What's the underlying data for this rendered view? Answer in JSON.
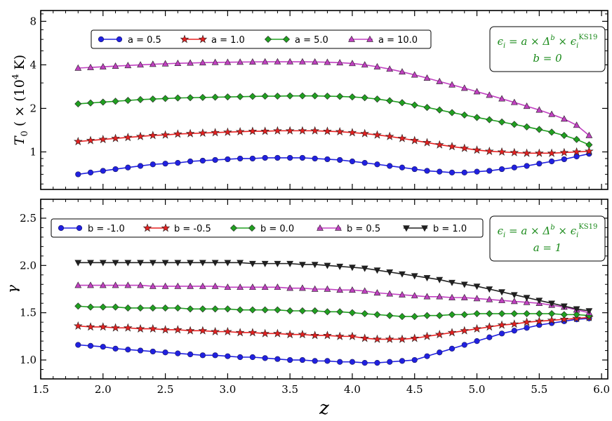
{
  "chart_data": [
    {
      "type": "line",
      "ylabel": "T_0 (×(10^4 K)",
      "ylabel_parts": [
        "T",
        "0",
        " ( × (10",
        "4",
        " K)"
      ],
      "y_scale": "log",
      "ylim": [
        0.55,
        9.5
      ],
      "xlim": [
        1.5,
        6.05
      ],
      "yticks": [
        1,
        2,
        4,
        8
      ],
      "yticklabels": [
        "1",
        "2",
        "4",
        "8"
      ],
      "legend_location": "top-left",
      "annotation": {
        "line1": "ϵi = a × Δb × ϵiKS19",
        "line1_parts": [
          "ϵ",
          "i",
          " = a × Δ",
          "b",
          " × ϵ",
          "i",
          "KS19"
        ],
        "line2": "b = 0"
      },
      "x": [
        1.8,
        1.9,
        2.0,
        2.1,
        2.2,
        2.3,
        2.4,
        2.5,
        2.6,
        2.7,
        2.8,
        2.9,
        3.0,
        3.1,
        3.2,
        3.3,
        3.4,
        3.5,
        3.6,
        3.7,
        3.8,
        3.9,
        4.0,
        4.1,
        4.2,
        4.3,
        4.4,
        4.5,
        4.6,
        4.7,
        4.8,
        4.9,
        5.0,
        5.1,
        5.2,
        5.3,
        5.4,
        5.5,
        5.6,
        5.7,
        5.8,
        5.9
      ],
      "series": [
        {
          "name": "a = 0.5",
          "color": "#2020e0",
          "marker": "circle",
          "values": [
            0.7,
            0.72,
            0.74,
            0.76,
            0.78,
            0.8,
            0.82,
            0.83,
            0.84,
            0.86,
            0.87,
            0.88,
            0.89,
            0.9,
            0.9,
            0.91,
            0.91,
            0.91,
            0.91,
            0.9,
            0.89,
            0.88,
            0.86,
            0.84,
            0.82,
            0.8,
            0.78,
            0.76,
            0.74,
            0.73,
            0.72,
            0.72,
            0.73,
            0.74,
            0.76,
            0.78,
            0.8,
            0.83,
            0.86,
            0.89,
            0.93,
            0.97
          ]
        },
        {
          "name": "a = 1.0",
          "color": "#e52020",
          "marker": "star",
          "values": [
            1.18,
            1.2,
            1.22,
            1.24,
            1.26,
            1.28,
            1.3,
            1.31,
            1.33,
            1.34,
            1.35,
            1.36,
            1.37,
            1.38,
            1.39,
            1.39,
            1.4,
            1.4,
            1.4,
            1.4,
            1.39,
            1.38,
            1.36,
            1.34,
            1.31,
            1.28,
            1.24,
            1.2,
            1.16,
            1.12,
            1.09,
            1.06,
            1.03,
            1.01,
            1.0,
            0.99,
            0.98,
            0.98,
            0.98,
            0.99,
            1.0,
            1.01
          ]
        },
        {
          "name": "a = 5.0",
          "color": "#20a020",
          "marker": "diamond",
          "values": [
            2.15,
            2.18,
            2.21,
            2.24,
            2.27,
            2.3,
            2.32,
            2.34,
            2.36,
            2.37,
            2.38,
            2.39,
            2.4,
            2.41,
            2.42,
            2.43,
            2.43,
            2.44,
            2.44,
            2.44,
            2.43,
            2.42,
            2.4,
            2.37,
            2.32,
            2.26,
            2.19,
            2.11,
            2.03,
            1.95,
            1.87,
            1.8,
            1.73,
            1.67,
            1.61,
            1.55,
            1.49,
            1.43,
            1.37,
            1.3,
            1.22,
            1.12
          ]
        },
        {
          "name": "a = 10.0",
          "color": "#c040c0",
          "marker": "triangle",
          "values": [
            3.8,
            3.84,
            3.88,
            3.92,
            3.96,
            4.0,
            4.04,
            4.07,
            4.1,
            4.12,
            4.14,
            4.16,
            4.17,
            4.18,
            4.19,
            4.2,
            4.2,
            4.2,
            4.2,
            4.19,
            4.17,
            4.14,
            4.09,
            4.0,
            3.88,
            3.74,
            3.58,
            3.41,
            3.24,
            3.07,
            2.91,
            2.76,
            2.61,
            2.47,
            2.33,
            2.2,
            2.07,
            1.95,
            1.82,
            1.69,
            1.53,
            1.3
          ]
        }
      ]
    },
    {
      "type": "line",
      "xlabel": "z",
      "ylabel": "γ",
      "ylim": [
        0.8,
        2.7
      ],
      "xlim": [
        1.5,
        6.05
      ],
      "yticks": [
        1.0,
        1.5,
        2.0,
        2.5
      ],
      "yticklabels": [
        "1.0",
        "1.5",
        "2.0",
        "2.5"
      ],
      "xticks": [
        1.5,
        2.0,
        2.5,
        3.0,
        3.5,
        4.0,
        4.5,
        5.0,
        5.5,
        6.0
      ],
      "xticklabels": [
        "1.5",
        "2.0",
        "2.5",
        "3.0",
        "3.5",
        "4.0",
        "4.5",
        "5.0",
        "5.5",
        "6.0"
      ],
      "legend_location": "top-left",
      "annotation": {
        "line1": "ϵi = a × Δb × ϵiKS19",
        "line1_parts": [
          "ϵ",
          "i",
          " = a × Δ",
          "b",
          " × ϵ",
          "i",
          "KS19"
        ],
        "line2": "a = 1"
      },
      "x": [
        1.8,
        1.9,
        2.0,
        2.1,
        2.2,
        2.3,
        2.4,
        2.5,
        2.6,
        2.7,
        2.8,
        2.9,
        3.0,
        3.1,
        3.2,
        3.3,
        3.4,
        3.5,
        3.6,
        3.7,
        3.8,
        3.9,
        4.0,
        4.1,
        4.2,
        4.3,
        4.4,
        4.5,
        4.6,
        4.7,
        4.8,
        4.9,
        5.0,
        5.1,
        5.2,
        5.3,
        5.4,
        5.5,
        5.6,
        5.7,
        5.8,
        5.9
      ],
      "series": [
        {
          "name": "b = -1.0",
          "color": "#2020e0",
          "marker": "circle",
          "values": [
            1.16,
            1.15,
            1.14,
            1.12,
            1.11,
            1.1,
            1.09,
            1.08,
            1.07,
            1.06,
            1.05,
            1.05,
            1.04,
            1.03,
            1.03,
            1.02,
            1.01,
            1.0,
            1.0,
            0.99,
            0.99,
            0.98,
            0.98,
            0.97,
            0.97,
            0.98,
            0.99,
            1.0,
            1.04,
            1.08,
            1.12,
            1.16,
            1.2,
            1.24,
            1.28,
            1.31,
            1.34,
            1.37,
            1.39,
            1.41,
            1.43,
            1.44
          ]
        },
        {
          "name": "b = -0.5",
          "color": "#e52020",
          "marker": "star",
          "values": [
            1.36,
            1.35,
            1.35,
            1.34,
            1.34,
            1.33,
            1.33,
            1.32,
            1.32,
            1.31,
            1.31,
            1.3,
            1.3,
            1.29,
            1.29,
            1.28,
            1.28,
            1.27,
            1.27,
            1.26,
            1.26,
            1.25,
            1.25,
            1.23,
            1.22,
            1.22,
            1.22,
            1.23,
            1.25,
            1.27,
            1.29,
            1.31,
            1.33,
            1.35,
            1.37,
            1.38,
            1.4,
            1.41,
            1.42,
            1.43,
            1.44,
            1.45
          ]
        },
        {
          "name": "b = 0.0",
          "color": "#20a020",
          "marker": "diamond",
          "values": [
            1.57,
            1.56,
            1.56,
            1.56,
            1.55,
            1.55,
            1.55,
            1.55,
            1.55,
            1.54,
            1.54,
            1.54,
            1.54,
            1.53,
            1.53,
            1.53,
            1.53,
            1.52,
            1.52,
            1.52,
            1.51,
            1.51,
            1.5,
            1.49,
            1.48,
            1.47,
            1.46,
            1.46,
            1.47,
            1.47,
            1.48,
            1.48,
            1.49,
            1.49,
            1.49,
            1.49,
            1.49,
            1.49,
            1.49,
            1.48,
            1.48,
            1.47
          ]
        },
        {
          "name": "b = 0.5",
          "color": "#c040c0",
          "marker": "triangle",
          "values": [
            1.79,
            1.79,
            1.79,
            1.79,
            1.79,
            1.79,
            1.78,
            1.78,
            1.78,
            1.78,
            1.78,
            1.78,
            1.77,
            1.77,
            1.77,
            1.77,
            1.77,
            1.76,
            1.76,
            1.75,
            1.75,
            1.74,
            1.74,
            1.73,
            1.71,
            1.7,
            1.69,
            1.68,
            1.67,
            1.67,
            1.66,
            1.66,
            1.65,
            1.64,
            1.63,
            1.62,
            1.61,
            1.6,
            1.58,
            1.56,
            1.53,
            1.5
          ]
        },
        {
          "name": "b = 1.0",
          "color": "#202020",
          "marker": "triangle-down",
          "values": [
            2.03,
            2.03,
            2.03,
            2.03,
            2.03,
            2.03,
            2.03,
            2.03,
            2.03,
            2.03,
            2.03,
            2.03,
            2.03,
            2.03,
            2.02,
            2.02,
            2.02,
            2.02,
            2.01,
            2.01,
            2.0,
            1.99,
            1.98,
            1.97,
            1.95,
            1.93,
            1.91,
            1.89,
            1.87,
            1.85,
            1.82,
            1.8,
            1.78,
            1.75,
            1.72,
            1.69,
            1.66,
            1.63,
            1.6,
            1.57,
            1.54,
            1.52
          ]
        }
      ]
    }
  ]
}
